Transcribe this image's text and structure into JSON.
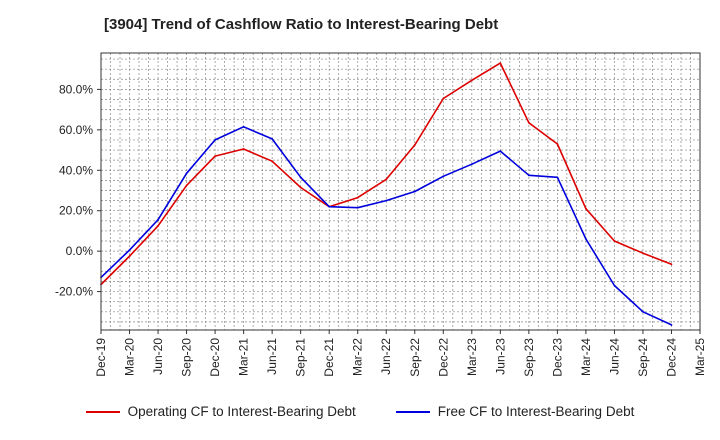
{
  "chart_data": {
    "type": "line",
    "title": "[3904]  Trend of Cashflow Ratio to Interest-Bearing Debt",
    "xlabel": "",
    "ylabel": "",
    "x": [
      "Dec-19",
      "Mar-20",
      "Jun-20",
      "Sep-20",
      "Dec-20",
      "Mar-21",
      "Jun-21",
      "Sep-21",
      "Dec-21",
      "Mar-22",
      "Jun-22",
      "Sep-22",
      "Dec-22",
      "Mar-23",
      "Jun-23",
      "Sep-23",
      "Dec-23",
      "Mar-24",
      "Jun-24",
      "Sep-24",
      "Dec-24",
      "Mar-25"
    ],
    "ylim": [
      -39,
      98
    ],
    "yticks": [
      -20,
      0,
      20,
      40,
      60,
      80
    ],
    "ytick_labels": [
      "-20.0%",
      "0.0%",
      "20.0%",
      "40.0%",
      "60.0%",
      "80.0%"
    ],
    "grid": true,
    "legend_position": "bottom",
    "series": [
      {
        "name": "Operating CF to Interest-Bearing Debt",
        "color": "#dd0000",
        "values": [
          -16.5,
          -2.5,
          12.5,
          32.5,
          47.0,
          50.5,
          44.5,
          31.5,
          22.0,
          26.5,
          35.5,
          52.5,
          75.5,
          84.5,
          93.0,
          63.5,
          53.0,
          21.0,
          5.0,
          -1.0,
          -6.5,
          null
        ]
      },
      {
        "name": "Free CF to Interest-Bearing Debt",
        "color": "#0000dd",
        "values": [
          -13.0,
          0.5,
          15.5,
          38.5,
          55.0,
          61.5,
          55.5,
          36.5,
          22.0,
          21.5,
          25.0,
          29.5,
          37.0,
          43.0,
          49.5,
          37.5,
          36.5,
          6.0,
          -17.0,
          -30.0,
          -36.5,
          null
        ]
      }
    ]
  }
}
